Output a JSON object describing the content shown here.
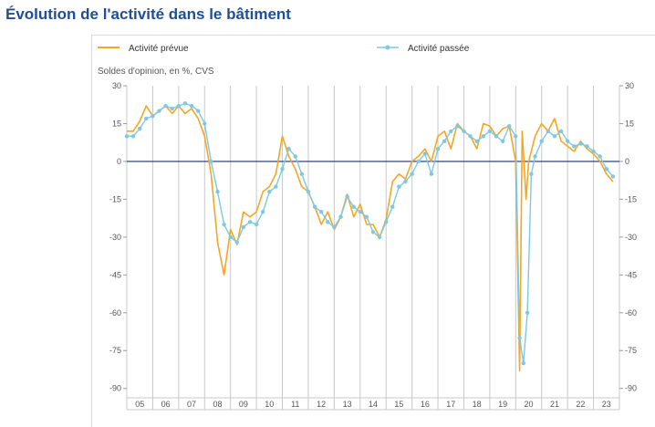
{
  "page": {
    "title": "Évolution de l'activité dans le bâtiment"
  },
  "colors": {
    "prevue": "#f5a623",
    "passee": "#7ec8e3",
    "zero_line": "#1f2d7a",
    "grid": "#c8c8c8",
    "title": "#1f4e99"
  },
  "chart_data": {
    "type": "line",
    "title": "Évolution de l'activité dans le bâtiment",
    "ylabel": "Soldes d'opinion, en %, CVS",
    "xlabel": "",
    "ylim": [
      -93,
      30
    ],
    "yticks": [
      30,
      15,
      0,
      -15,
      -30,
      -45,
      -60,
      -75,
      -90
    ],
    "ytick_labels": [
      "30",
      "15",
      "0",
      "-15",
      "-30",
      "-45",
      "-60",
      "-75",
      "-90"
    ],
    "x_categories": [
      "05",
      "06",
      "07",
      "08",
      "09",
      "10",
      "11",
      "12",
      "13",
      "14",
      "15",
      "16",
      "17",
      "18",
      "19",
      "20",
      "21",
      "22",
      "23"
    ],
    "grid": "vertical lines at year boundaries, horizontal zero line",
    "legend_position": "top",
    "series": [
      {
        "name": "Activité prévue",
        "style": "line",
        "x": [
          2005.0,
          2005.25,
          2005.5,
          2005.75,
          2006.0,
          2006.25,
          2006.5,
          2006.75,
          2007.0,
          2007.25,
          2007.5,
          2007.75,
          2008.0,
          2008.25,
          2008.5,
          2008.75,
          2009.0,
          2009.25,
          2009.5,
          2009.75,
          2010.0,
          2010.25,
          2010.5,
          2010.75,
          2011.0,
          2011.25,
          2011.5,
          2011.75,
          2012.0,
          2012.25,
          2012.5,
          2012.75,
          2013.0,
          2013.25,
          2013.5,
          2013.75,
          2014.0,
          2014.25,
          2014.5,
          2014.75,
          2015.0,
          2015.25,
          2015.5,
          2015.75,
          2016.0,
          2016.25,
          2016.5,
          2016.75,
          2017.0,
          2017.25,
          2017.5,
          2017.75,
          2018.0,
          2018.25,
          2018.5,
          2018.75,
          2019.0,
          2019.25,
          2019.5,
          2019.75,
          2020.0,
          2020.15,
          2020.25,
          2020.4,
          2020.5,
          2020.75,
          2021.0,
          2021.25,
          2021.5,
          2021.75,
          2022.0,
          2022.25,
          2022.5,
          2022.75,
          2023.0,
          2023.25,
          2023.5,
          2023.75
        ],
        "y": [
          12,
          12,
          16,
          22,
          18,
          20,
          22,
          19,
          22,
          19,
          21,
          17,
          10,
          -5,
          -32,
          -45,
          -27,
          -33,
          -20,
          -22,
          -20,
          -12,
          -10,
          -5,
          10,
          2,
          -3,
          -10,
          -12,
          -18,
          -25,
          -20,
          -27,
          -22,
          -13,
          -22,
          -17,
          -25,
          -25,
          -30,
          -23,
          -8,
          -5,
          -7,
          0,
          2,
          5,
          0,
          10,
          12,
          5,
          15,
          12,
          10,
          5,
          15,
          14,
          10,
          13,
          14,
          0,
          -83,
          12,
          -15,
          0,
          10,
          15,
          12,
          17,
          8,
          6,
          4,
          8,
          5,
          3,
          0,
          -5,
          -8
        ]
      },
      {
        "name": "Activité passée",
        "style": "line-with-markers",
        "x": [
          2005.0,
          2005.25,
          2005.5,
          2005.75,
          2006.0,
          2006.25,
          2006.5,
          2006.75,
          2007.0,
          2007.25,
          2007.5,
          2007.75,
          2008.0,
          2008.25,
          2008.5,
          2008.75,
          2009.0,
          2009.25,
          2009.5,
          2009.75,
          2010.0,
          2010.25,
          2010.5,
          2010.75,
          2011.0,
          2011.25,
          2011.5,
          2011.75,
          2012.0,
          2012.25,
          2012.5,
          2012.75,
          2013.0,
          2013.25,
          2013.5,
          2013.75,
          2014.0,
          2014.25,
          2014.5,
          2014.75,
          2015.0,
          2015.25,
          2015.5,
          2015.75,
          2016.0,
          2016.25,
          2016.5,
          2016.75,
          2017.0,
          2017.25,
          2017.5,
          2017.75,
          2018.0,
          2018.25,
          2018.5,
          2018.75,
          2019.0,
          2019.25,
          2019.5,
          2019.75,
          2020.0,
          2020.15,
          2020.3,
          2020.45,
          2020.6,
          2020.75,
          2021.0,
          2021.25,
          2021.5,
          2021.75,
          2022.0,
          2022.25,
          2022.5,
          2022.75,
          2023.0,
          2023.25,
          2023.5,
          2023.75
        ],
        "y": [
          10,
          10,
          13,
          17,
          18,
          20,
          22,
          21,
          22,
          23,
          22,
          20,
          15,
          0,
          -12,
          -25,
          -30,
          -32,
          -26,
          -24,
          -25,
          -20,
          -12,
          -10,
          -3,
          5,
          2,
          -5,
          -12,
          -18,
          -20,
          -24,
          -26,
          -22,
          -14,
          -18,
          -20,
          -22,
          -28,
          -30,
          -24,
          -18,
          -10,
          -8,
          -5,
          0,
          3,
          -5,
          5,
          8,
          12,
          14,
          12,
          10,
          8,
          10,
          12,
          10,
          8,
          14,
          10,
          -70,
          -80,
          -60,
          -5,
          2,
          8,
          12,
          10,
          12,
          8,
          6,
          7,
          6,
          4,
          2,
          -3,
          -6
        ]
      }
    ]
  }
}
